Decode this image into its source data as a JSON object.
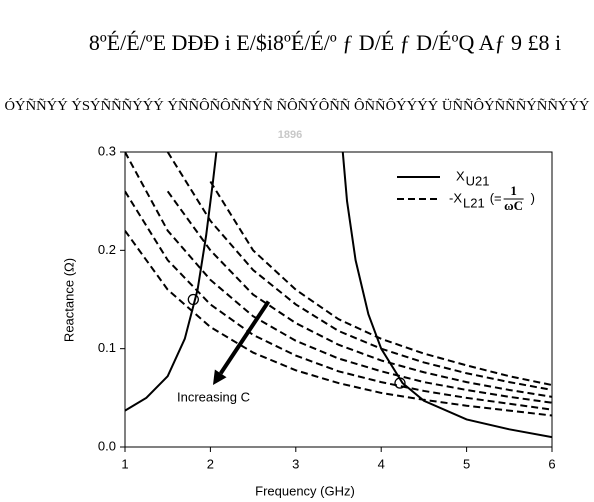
{
  "header_lines": [
    "8ºÉ/É/ºE DÐÐ i E/$i8ºÉ/É/º ƒ D/É ƒ D/ÉºQ Aƒ 9 £8 i",
    "ÓÝÑÑÝÝ ÝSÝÑÑÑÝÝÝ ÝÑÑÔÑÔÑÑÝÑ ÑÔÑÝÔÑÑ ÔÑÑÔÝÝÝÝ ÜÑÑÔÝÑÑÑÝÑÑÝÝÝ"
  ],
  "watermark": "1896",
  "chart_data": {
    "type": "line",
    "xlabel": "Frequency (GHz)",
    "ylabel": "Reactance (Ω)",
    "xlim": [
      1,
      6
    ],
    "xticks": [
      1,
      2,
      3,
      4,
      5,
      6
    ],
    "ylim": [
      0,
      0.3
    ],
    "yticks": [
      {
        "value": 0,
        "label": "0.0"
      },
      0.1,
      0.2,
      0.3
    ],
    "series": [
      {
        "name": "X",
        "subscript": "U21",
        "color": "#000000",
        "dash": "solid",
        "x": [
          1,
          1.25,
          1.5,
          1.7,
          1.85,
          1.95,
          2.03,
          2.07,
          2.8,
          3.55,
          3.6,
          3.7,
          3.85,
          4.0,
          4.25,
          4.5,
          5,
          5.5,
          6
        ],
        "values": [
          0.037,
          0.05,
          0.072,
          0.11,
          0.16,
          0.215,
          0.27,
          0.3,
          null,
          0.3,
          0.25,
          0.19,
          0.135,
          0.1,
          0.065,
          0.047,
          0.028,
          0.018,
          0.01
        ]
      },
      {
        "name": "-X",
        "subscript": "L21",
        "note_prefix": "(=",
        "fraction_num": "1",
        "fraction_den": "ωC",
        "note_suffix": ")",
        "color": "#000000",
        "dash": "dashed",
        "x": [
          1,
          1.5,
          2,
          2.5,
          3,
          3.5,
          4,
          4.5,
          5,
          5.5,
          6
        ],
        "curves": [
          {
            "values": [
              null,
              null,
              0.27,
              0.2,
              0.16,
              0.13,
              0.11,
              0.095,
              0.083,
              0.072,
              0.063
            ]
          },
          {
            "values": [
              null,
              0.3,
              0.23,
              0.18,
              0.145,
              0.118,
              0.1,
              0.086,
              0.075,
              0.066,
              0.058
            ]
          },
          {
            "values": [
              null,
              0.26,
              0.2,
              0.155,
              0.126,
              0.104,
              0.088,
              0.076,
              0.066,
              0.058,
              0.051
            ]
          },
          {
            "values": [
              0.3,
              0.22,
              0.17,
              0.133,
              0.108,
              0.09,
              0.077,
              0.066,
              0.058,
              0.051,
              0.045
            ]
          },
          {
            "values": [
              0.26,
              0.19,
              0.145,
              0.114,
              0.093,
              0.077,
              0.066,
              0.057,
              0.05,
              0.044,
              0.038
            ]
          },
          {
            "values": [
              0.22,
              0.16,
              0.122,
              0.096,
              0.078,
              0.065,
              0.055,
              0.048,
              0.042,
              0.037,
              0.032
            ]
          }
        ]
      }
    ],
    "markers": [
      {
        "x": 1.8,
        "y": 0.15
      },
      {
        "x": 4.22,
        "y": 0.065
      }
    ],
    "arrow": {
      "text": "Increasing C",
      "from": [
        2.68,
        0.148
      ],
      "to": [
        2.03,
        0.063
      ]
    }
  }
}
